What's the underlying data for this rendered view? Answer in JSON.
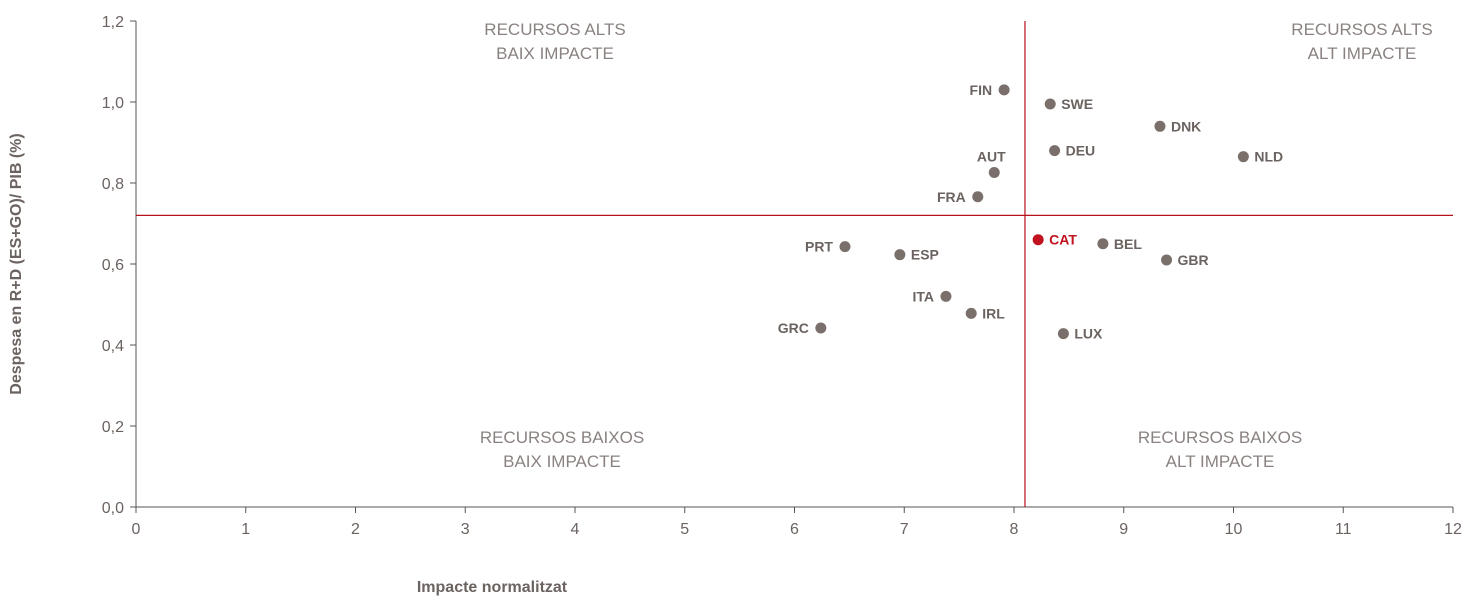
{
  "chart_data": {
    "type": "scatter",
    "xlabel": "Impacte normalitzat",
    "ylabel": "Despesa en R+D (ES+GO)/ PIB (%)",
    "xlim": [
      0,
      12
    ],
    "ylim": [
      0,
      1.2
    ],
    "x_ticks": [
      "0",
      "1",
      "2",
      "3",
      "4",
      "5",
      "6",
      "7",
      "8",
      "9",
      "10",
      "11",
      "12"
    ],
    "y_ticks": [
      "0,0",
      "0,2",
      "0,4",
      "0,6",
      "0,8",
      "1,0",
      "1,2"
    ],
    "grid": false,
    "reference_lines": {
      "x": 8.1,
      "y": 0.72,
      "color": "#b5121b"
    },
    "quadrant_labels": [
      {
        "id": "top-left",
        "lines": [
          "RECURSOS ALTS",
          "BAIX IMPACTE"
        ]
      },
      {
        "id": "top-right",
        "lines": [
          "RECURSOS ALTS",
          "ALT IMPACTE"
        ]
      },
      {
        "id": "bottom-left",
        "lines": [
          "RECURSOS BAIXOS",
          "BAIX IMPACTE"
        ]
      },
      {
        "id": "bottom-right",
        "lines": [
          "RECURSOS BAIXOS",
          "ALT IMPACTE"
        ]
      }
    ],
    "colors": {
      "point": "#7a6f6a",
      "highlight": "#c1121f",
      "axis": "#555555",
      "text": "#6b6360"
    },
    "points": [
      {
        "label": "FIN",
        "x": 7.91,
        "y": 1.03,
        "label_side": "left"
      },
      {
        "label": "SWE",
        "x": 8.33,
        "y": 0.995,
        "label_side": "right"
      },
      {
        "label": "DNK",
        "x": 9.33,
        "y": 0.94,
        "label_side": "right"
      },
      {
        "label": "DEU",
        "x": 8.37,
        "y": 0.88,
        "label_side": "right"
      },
      {
        "label": "NLD",
        "x": 10.09,
        "y": 0.865,
        "label_side": "right"
      },
      {
        "label": "AUT",
        "x": 7.82,
        "y": 0.826,
        "label_side": "above"
      },
      {
        "label": "FRA",
        "x": 7.67,
        "y": 0.766,
        "label_side": "left"
      },
      {
        "label": "CAT",
        "x": 8.22,
        "y": 0.66,
        "label_side": "right",
        "highlight": true
      },
      {
        "label": "BEL",
        "x": 8.81,
        "y": 0.65,
        "label_side": "right"
      },
      {
        "label": "GBR",
        "x": 9.39,
        "y": 0.61,
        "label_side": "right"
      },
      {
        "label": "PRT",
        "x": 6.46,
        "y": 0.643,
        "label_side": "left"
      },
      {
        "label": "ESP",
        "x": 6.96,
        "y": 0.623,
        "label_side": "right"
      },
      {
        "label": "ITA",
        "x": 7.38,
        "y": 0.52,
        "label_side": "left"
      },
      {
        "label": "IRL",
        "x": 7.61,
        "y": 0.478,
        "label_side": "right"
      },
      {
        "label": "GRC",
        "x": 6.24,
        "y": 0.442,
        "label_side": "left"
      },
      {
        "label": "LUX",
        "x": 8.45,
        "y": 0.428,
        "label_side": "right"
      }
    ]
  }
}
